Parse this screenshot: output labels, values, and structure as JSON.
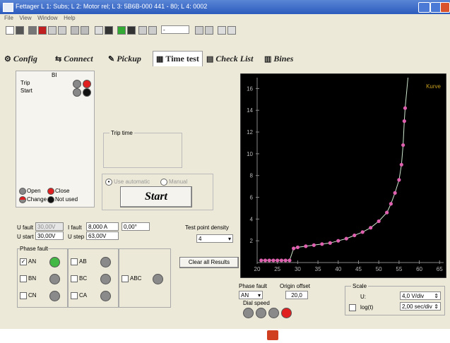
{
  "window": {
    "title": "Fettager   L 1: Subs;   L 2: Motor rel;   L 3: 5B6B-000 441 - 80;   L 4: 0002"
  },
  "menu": [
    "File",
    "View",
    "Window",
    "Help"
  ],
  "toolbar": {
    "step_value": "-"
  },
  "tabs": [
    {
      "label": "Config",
      "icon": "gear-icon"
    },
    {
      "label": "Connect",
      "icon": "plug-icon"
    },
    {
      "label": "Pickup",
      "icon": "pickup-icon"
    },
    {
      "label": "Time test",
      "icon": "grid-icon",
      "active": true
    },
    {
      "label": "Check List",
      "icon": "checklist-icon"
    },
    {
      "label": "Bines",
      "icon": "table-icon"
    }
  ],
  "inputs_panel": {
    "heading": "BI",
    "trip_label": "Trip",
    "start_label": "Start",
    "legend": {
      "open": "Open",
      "close": "Close",
      "change": "Change",
      "not_used": "Not used"
    }
  },
  "trip_time": {
    "label": "Trip time"
  },
  "mode": {
    "auto_label": "Use automatic",
    "manual_label": "Manual"
  },
  "start_button": {
    "label": "Start"
  },
  "fault": {
    "u_fault_label": "U fault",
    "u_fault_value": "30,00V",
    "i_fault_label": "I fault",
    "i_fault_value": "8,000 A",
    "i_fault_angle": "0,00°",
    "u_start_label": "U start",
    "u_start_value": "30,00V",
    "u_step_label": "U step",
    "u_step_value": "63,00V",
    "test_point_density_label": "Test point density",
    "test_point_density_value": "4"
  },
  "phase_fault": {
    "label": "Phase fault",
    "options": [
      {
        "label": "AN",
        "checked": true,
        "led": "#44b844"
      },
      {
        "label": "BN",
        "checked": false,
        "led": "#8a8a8a"
      },
      {
        "label": "CN",
        "checked": false,
        "led": "#8a8a8a"
      },
      {
        "label": "AB",
        "checked": false,
        "led": "#8a8a8a"
      },
      {
        "label": "BC",
        "checked": false,
        "led": "#8a8a8a"
      },
      {
        "label": "CA",
        "checked": false,
        "led": "#8a8a8a"
      },
      {
        "label": "ABC",
        "checked": false,
        "led": "#8a8a8a"
      }
    ]
  },
  "clear_results": {
    "label": "Clear all Results"
  },
  "chart_data": {
    "type": "scatter",
    "series": [
      {
        "x": [
          21,
          22,
          23,
          24,
          25,
          26,
          27,
          28,
          29,
          30,
          32,
          34,
          36,
          38,
          40,
          42,
          44,
          46,
          48,
          50,
          52,
          53,
          54,
          55,
          55.6,
          56,
          56.3,
          56.5
        ],
        "y": [
          0.2,
          0.2,
          0.2,
          0.2,
          0.2,
          0.2,
          0.2,
          0.2,
          1.3,
          1.4,
          1.5,
          1.6,
          1.7,
          1.8,
          2.0,
          2.2,
          2.5,
          2.8,
          3.2,
          3.8,
          4.6,
          5.4,
          6.4,
          7.6,
          9.0,
          10.8,
          13.0,
          14.2
        ]
      }
    ],
    "curve_label": "Kurve",
    "x_ticks": [
      "20",
      "25",
      "30",
      "35",
      "40",
      "45",
      "50",
      "55",
      "60",
      "65"
    ],
    "y_ticks": [
      "16",
      "14",
      "12",
      "10",
      "8",
      "6",
      "4",
      "2"
    ],
    "xlim": [
      20,
      66
    ],
    "ylim": [
      0,
      17
    ],
    "grid": false,
    "background": "#000000",
    "marker_color": "#e060b0",
    "curve_color": "#cfe8cf"
  },
  "plot_controls": {
    "phase_fault_label": "Phase fault",
    "phase_fault_value": "AN",
    "origin_offset_label": "Origin offset",
    "origin_offset_value": "20,0",
    "dial_speed_label": "Dial speed",
    "scale_label": "Scale",
    "u_label": "U:",
    "u_value": "4,0 V/div",
    "log_label": "log(t)",
    "t_value": "2,00 sec/div"
  }
}
